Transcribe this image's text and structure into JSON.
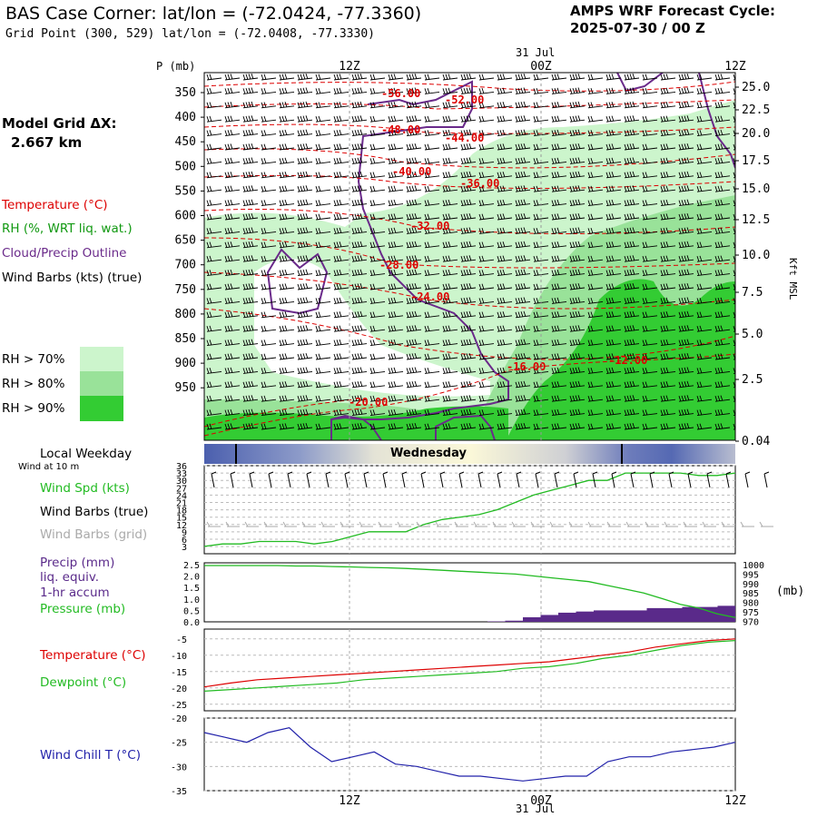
{
  "header": {
    "title": "BAS Case Corner:  lat/lon = (-72.0424, -77.3360)",
    "subtitle": "Grid Point (300, 529) lat/lon = (-72.0408, -77.3330)",
    "cycle_line1": "AMPS WRF Forecast Cycle:",
    "cycle_line2": "2025-07-30 / 00  Z"
  },
  "legend": {
    "model_grid_label": "Model Grid ΔX:",
    "model_grid_value": "2.667 km",
    "temperature": "Temperature (°C)",
    "rh": "RH (%, WRT liq. wat.)",
    "cloud": "Cloud/Precip Outline",
    "wind_barbs": "Wind Barbs (kts) (true)",
    "rh70": "RH > 70%",
    "rh80": "RH > 80%",
    "rh90": "RH > 90%",
    "local_weekday": "Local Weekday",
    "wind_at_10m": "Wind at 10 m",
    "wind_spd": "Wind Spd (kts)",
    "wind_barbs_true": "Wind Barbs (true)",
    "wind_barbs_grid": "Wind Barbs (grid)",
    "precip_l1": "Precip (mm)",
    "precip_l2": "liq. equiv.",
    "precip_l3": "1-hr accum",
    "pressure": "Pressure (mb)",
    "temp_panel": "Temperature (°C)",
    "dewpoint_panel": "Dewpoint (°C)",
    "windchill_panel": "Wind Chill T (°C)"
  },
  "colors": {
    "temperature": "#dd0000",
    "rh_label": "#119911",
    "cloud": "#6a2a8a",
    "rh70": "#ccf5cc",
    "rh80": "#99e299",
    "rh90": "#33cc33",
    "wind_spd": "#22bb22",
    "barbs_grid": "#aaaaaa",
    "precip": "#5a2a8a",
    "windchill": "#2222aa"
  },
  "chart_data": {
    "type": "line",
    "time_axis": {
      "top_ticks": [
        "12Z",
        "00Z",
        "12Z"
      ],
      "top_date": "31 Jul",
      "bottom_ticks": [
        "12Z",
        "00Z",
        "12Z"
      ],
      "bottom_date": "31 Jul",
      "weekday_band": "Wednesday"
    },
    "cross_section": {
      "p_label": "P (mb)",
      "pressure_ticks": [
        "350",
        "400",
        "450",
        "500",
        "550",
        "600",
        "650",
        "700",
        "750",
        "800",
        "850",
        "900",
        "950"
      ],
      "height_ticks": [
        "25.0",
        "22.5",
        "20.0",
        "17.5",
        "15.0",
        "12.5",
        "10.0",
        "7.5",
        "5.0",
        "2.5",
        "0.04"
      ],
      "height_label": "Kft MSL",
      "temp_labels": [
        "56.00",
        "52.00",
        "48.00",
        "44.00",
        "40.00",
        "36.00",
        "32.00",
        "28.00",
        "24.00",
        "20.00",
        "16.00",
        "12.00"
      ]
    },
    "wind_panel": {
      "y_ticks": [
        "36",
        "33",
        "30",
        "27",
        "24",
        "21",
        "18",
        "15",
        "12",
        "9",
        "6",
        "3"
      ],
      "wind_spd": [
        3,
        4,
        4,
        5,
        5,
        5,
        4,
        5,
        7,
        9,
        9,
        9,
        12,
        14,
        15,
        16,
        18,
        21,
        24,
        26,
        28,
        30,
        30,
        33,
        33,
        33,
        33,
        32,
        32,
        33
      ]
    },
    "precip_panel": {
      "left_ticks": [
        "2.5",
        "2.0",
        "1.5",
        "1.0",
        "0.5",
        "0.0"
      ],
      "right_ticks": [
        "1000",
        "995",
        "990",
        "985",
        "980",
        "975",
        "970"
      ],
      "right_unit": "(mb)",
      "precip": [
        0,
        0,
        0,
        0,
        0,
        0,
        0,
        0,
        0,
        0,
        0,
        0,
        0,
        0,
        0,
        0,
        0.02,
        0.05,
        0.2,
        0.3,
        0.4,
        0.45,
        0.5,
        0.5,
        0.5,
        0.6,
        0.6,
        0.65,
        0.65,
        0.7
      ],
      "pressure": [
        999.5,
        999.5,
        999.5,
        999.5,
        999.5,
        999.3,
        999.3,
        999,
        998.8,
        998.5,
        998.3,
        998,
        997.5,
        997,
        996.5,
        996,
        995.5,
        995,
        994,
        993,
        992,
        991,
        989,
        987,
        985,
        982,
        979,
        977,
        974,
        972
      ]
    },
    "temp_panel": {
      "y_ticks": [
        "-5",
        "-10",
        "-15",
        "-20",
        "-25"
      ],
      "temperature": [
        -19.7,
        -18.5,
        -17.5,
        -17,
        -16.5,
        -16,
        -15.5,
        -15,
        -14.5,
        -14,
        -13.5,
        -13,
        -12.5,
        -12,
        -11,
        -10,
        -9,
        -7.5,
        -6.5,
        -5.5,
        -5
      ],
      "dewpoint": [
        -21,
        -20.5,
        -20,
        -19.5,
        -19,
        -18.5,
        -17.5,
        -17,
        -16.5,
        -16,
        -15.5,
        -15,
        -14,
        -13.5,
        -12.5,
        -11,
        -10,
        -8.5,
        -7,
        -6,
        -5.5
      ]
    },
    "windchill_panel": {
      "y_ticks": [
        "-20",
        "-25",
        "-30",
        "-35"
      ],
      "windchill": [
        -23,
        -24,
        -25,
        -23,
        -22,
        -26,
        -29,
        -28,
        -27,
        -29.5,
        -30,
        -31,
        -32,
        -32,
        -32.5,
        -33,
        -32.5,
        -32,
        -32,
        -29,
        -28,
        -28,
        -27,
        -26.5,
        -26,
        -25
      ]
    }
  }
}
